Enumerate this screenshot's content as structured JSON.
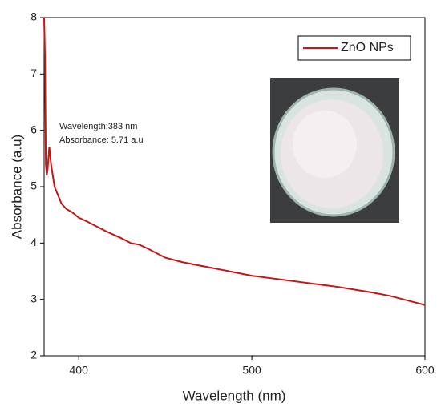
{
  "chart_data": {
    "type": "line",
    "xlabel": "Wavelength (nm)",
    "ylabel": "Absorbance (a.u)",
    "annotations": [
      "Wavelength:383 nm",
      "Absorbance: 5.71 a.u"
    ],
    "x": [
      380,
      380.5,
      381,
      381.5,
      382,
      383,
      384,
      386,
      388,
      390,
      393,
      396,
      400,
      405,
      410,
      415,
      420,
      425,
      430,
      435,
      440,
      445,
      450,
      460,
      470,
      480,
      490,
      500,
      510,
      520,
      530,
      540,
      550,
      560,
      570,
      580,
      590,
      600
    ],
    "series": [
      {
        "name": "ZnO NPs",
        "color": "#c81414",
        "values": [
          8.0,
          7.3,
          5.4,
          5.2,
          5.3,
          5.71,
          5.4,
          5.0,
          4.85,
          4.7,
          4.6,
          4.55,
          4.45,
          4.38,
          4.3,
          4.22,
          4.15,
          4.08,
          4.0,
          3.97,
          3.9,
          3.82,
          3.74,
          3.66,
          3.6,
          3.54,
          3.48,
          3.42,
          3.38,
          3.34,
          3.3,
          3.26,
          3.22,
          3.17,
          3.12,
          3.06,
          2.98,
          2.9
        ]
      }
    ],
    "xlim": [
      380,
      600
    ],
    "xticks": [
      400,
      500,
      600
    ],
    "ylim": [
      2,
      8
    ],
    "yticks": [
      2,
      3,
      4,
      5,
      6,
      7,
      8
    ],
    "legend": "upper right"
  }
}
